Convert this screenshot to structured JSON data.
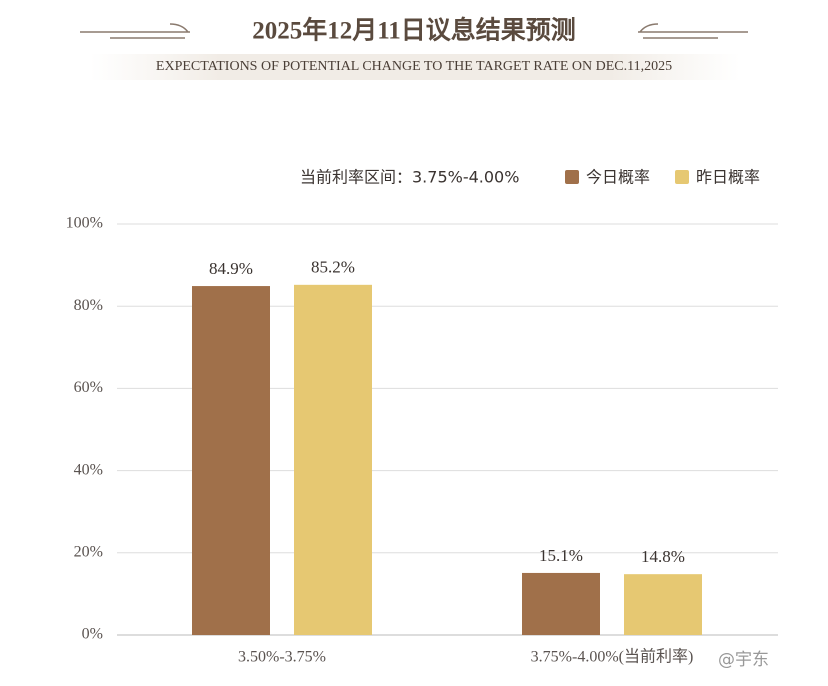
{
  "chart_data": {
    "type": "bar",
    "title": "2025年12月11日议息结果预测",
    "subtitle": "EXPECTATIONS OF POTENTIAL CHANGE TO THE TARGET RATE ON DEC.11,2025",
    "annotation": "当前利率区间：3.75%-4.00%",
    "watermark": "@宇东",
    "categories": [
      "3.50%-3.75%",
      "3.75%-4.00%(当前利率)"
    ],
    "series": [
      {
        "name": "今日概率",
        "color": "#a0704a",
        "values": [
          84.9,
          15.1
        ],
        "value_labels": [
          "84.9%",
          "15.1%"
        ]
      },
      {
        "name": "昨日概率",
        "color": "#e6c872",
        "values": [
          85.2,
          14.8
        ],
        "value_labels": [
          "85.2%",
          "14.8%"
        ]
      }
    ],
    "ylim": [
      0,
      100
    ],
    "yticks": [
      {
        "value": 0,
        "label": "0%"
      },
      {
        "value": 20,
        "label": "20%"
      },
      {
        "value": 40,
        "label": "40%"
      },
      {
        "value": 60,
        "label": "60%"
      },
      {
        "value": 80,
        "label": "80%"
      },
      {
        "value": 100,
        "label": "100%"
      }
    ],
    "grid": true
  }
}
